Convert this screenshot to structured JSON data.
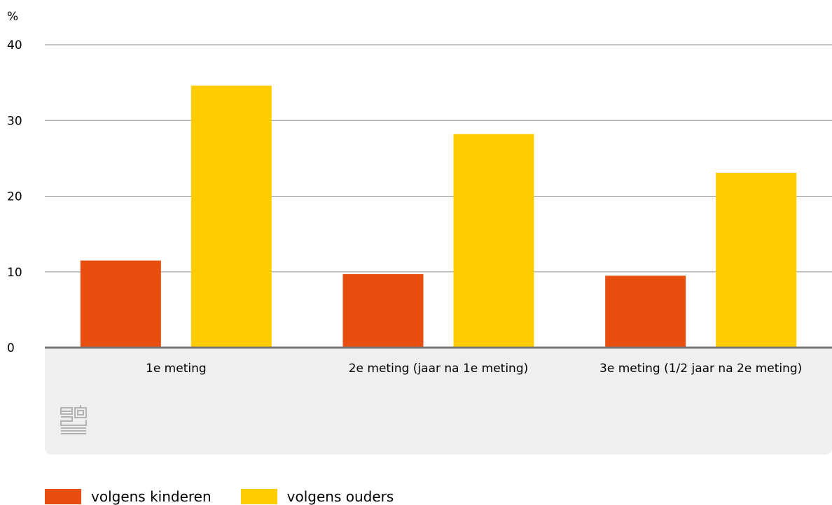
{
  "chart_data": {
    "type": "bar",
    "ylabel": "%",
    "ylim": [
      0,
      40
    ],
    "yticks": [
      0,
      10,
      20,
      30,
      40
    ],
    "grid": true,
    "legend_position": "bottom-left",
    "categories": [
      "1e meting",
      "2e meting (jaar na 1e meting)",
      "3e meting (1/2 jaar na 2e meting)"
    ],
    "series": [
      {
        "name": "volgens kinderen",
        "color": "#e84e0f",
        "values": [
          11.5,
          9.7,
          9.5
        ]
      },
      {
        "name": "volgens ouders",
        "color": "#ffcc00",
        "values": [
          34.6,
          28.2,
          23.1
        ]
      }
    ]
  },
  "logo": "cbs"
}
